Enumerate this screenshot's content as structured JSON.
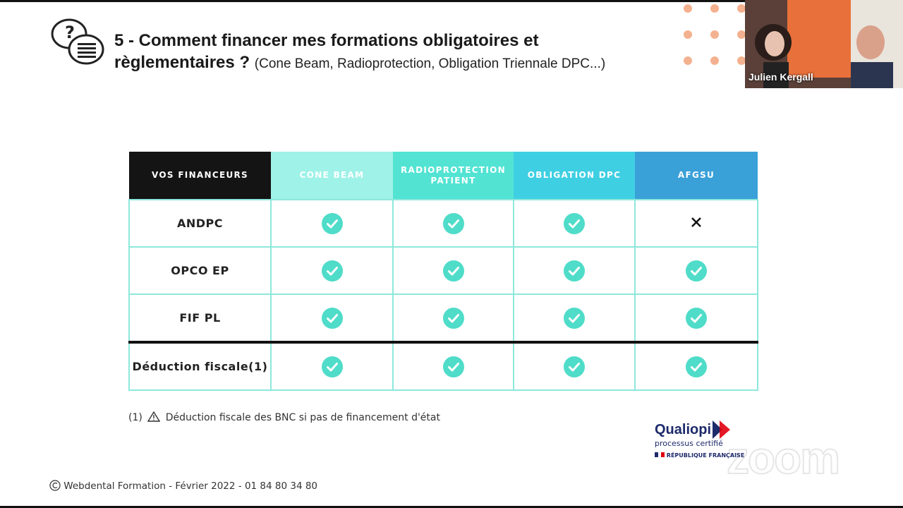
{
  "header": {
    "title": "5 - Comment financer mes formations obligatoires et règlementaires ?",
    "subtitle": "(Cone Beam, Radioprotection, Obligation Triennale DPC...)"
  },
  "table": {
    "columns": [
      "VOS FINANCEURS",
      "CONE BEAM",
      "RADIOPROTECTION PATIENT",
      "OBLIGATION DPC",
      "AFGSU"
    ],
    "rows": [
      "ANDPC",
      "OPCO EP",
      "FIF PL",
      "Déduction fiscale(1)"
    ]
  },
  "footnote": {
    "marker": "(1)",
    "text": "Déduction fiscale des BNC si pas de financement d'état"
  },
  "footer": "Webdental Formation - Février 2022 - 01 84 80 34 80",
  "video": {
    "name": "Julien Kergall"
  },
  "badge": {
    "brand": "Qualiopi",
    "tagline": "processus certifié",
    "issuer": "RÉPUBLIQUE FRANÇAISE"
  },
  "watermark": "zoom"
}
